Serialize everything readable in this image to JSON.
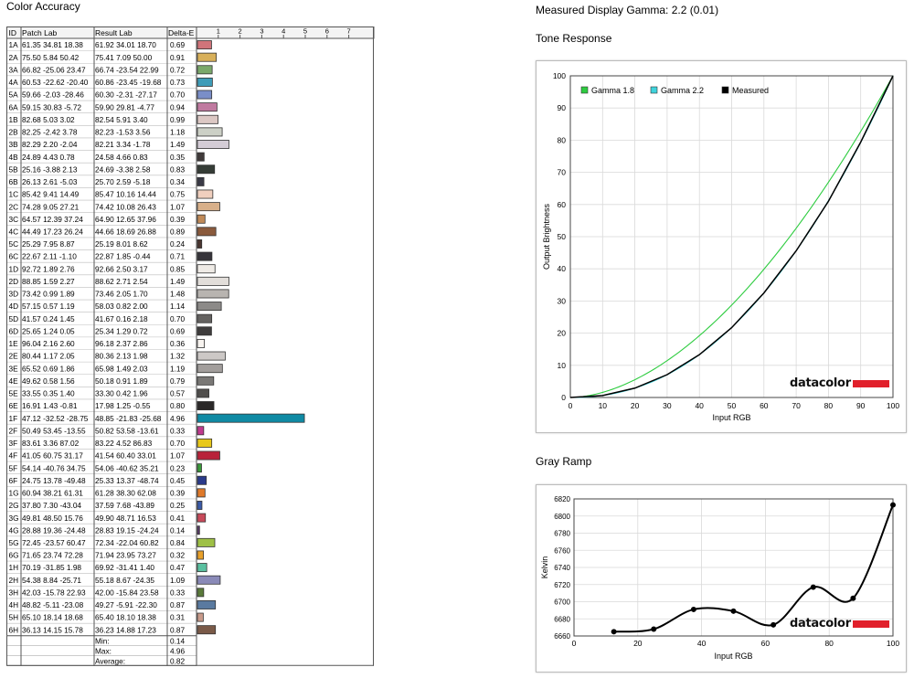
{
  "left": {
    "title": "Color Accuracy",
    "headers": {
      "id": "ID",
      "patch": "Patch Lab",
      "result": "Result Lab",
      "delta": "Delta-E"
    },
    "scale_ticks": [
      "1",
      "2",
      "3",
      "4",
      "5",
      "6",
      "7"
    ],
    "rows": [
      {
        "id": "1A",
        "patch": "61.35 34.81 18.38",
        "result": "61.92 34.01 18.70",
        "de": 0.69,
        "color": "#d0747a"
      },
      {
        "id": "2A",
        "patch": "75.50  5.84 50.42",
        "result": "75.41  7.09 50.00",
        "de": 0.91,
        "color": "#d8b05a"
      },
      {
        "id": "3A",
        "patch": "66.82 -25.06 23.47",
        "result": "66.74 -23.54 22.99",
        "de": 0.72,
        "color": "#7aa86a"
      },
      {
        "id": "4A",
        "patch": "60.53 -22.62 -20.40",
        "result": "60.86 -23.45 -19.68",
        "de": 0.73,
        "color": "#3e9cb8"
      },
      {
        "id": "5A",
        "patch": "59.66 -2.03 -28.46",
        "result": "60.30 -2.31 -27.17",
        "de": 0.7,
        "color": "#7a8ec8"
      },
      {
        "id": "6A",
        "patch": "59.15 30.83 -5.72",
        "result": "59.90 29.81 -4.77",
        "de": 0.94,
        "color": "#c07aa0"
      },
      {
        "id": "1B",
        "patch": "82.68  5.03  3.02",
        "result": "82.54  5.91  3.40",
        "de": 0.99,
        "color": "#dcc8c4"
      },
      {
        "id": "2B",
        "patch": "82.25 -2.42  3.78",
        "result": "82.23 -1.53  3.56",
        "de": 1.18,
        "color": "#ccd0c6"
      },
      {
        "id": "3B",
        "patch": "82.29  2.20 -2.04",
        "result": "82.21  3.34 -1.78",
        "de": 1.49,
        "color": "#d4ccd6"
      },
      {
        "id": "4B",
        "patch": "24.89  4.43  0.78",
        "result": "24.58  4.66  0.83",
        "de": 0.35,
        "color": "#403a3a"
      },
      {
        "id": "5B",
        "patch": "25.16 -3.88  2.13",
        "result": "24.69 -3.38  2.58",
        "de": 0.83,
        "color": "#353c36"
      },
      {
        "id": "6B",
        "patch": "26.13  2.61 -5.03",
        "result": "25.70  2.59 -5.18",
        "de": 0.34,
        "color": "#3a3a46"
      },
      {
        "id": "1C",
        "patch": "85.42  9.41 14.49",
        "result": "85.47 10.16 14.44",
        "de": 0.75,
        "color": "#f0cfbe"
      },
      {
        "id": "2C",
        "patch": "74.28  9.05 27.21",
        "result": "74.42 10.08 26.43",
        "de": 1.07,
        "color": "#d8b08a"
      },
      {
        "id": "3C",
        "patch": "64.57 12.39 37.24",
        "result": "64.90 12.65 37.96",
        "de": 0.39,
        "color": "#c08a58"
      },
      {
        "id": "4C",
        "patch": "44.49 17.23 26.24",
        "result": "44.66 18.69 26.88",
        "de": 0.89,
        "color": "#8a5a3c"
      },
      {
        "id": "5C",
        "patch": "25.29  7.95  8.87",
        "result": "25.19  8.01  8.62",
        "de": 0.24,
        "color": "#4a3630"
      },
      {
        "id": "6C",
        "patch": "22.67  2.11 -1.10",
        "result": "22.87  1.85 -0.44",
        "de": 0.71,
        "color": "#36343a"
      },
      {
        "id": "1D",
        "patch": "92.72  1.89  2.76",
        "result": "92.66  2.50  3.17",
        "de": 0.85,
        "color": "#efebe6"
      },
      {
        "id": "2D",
        "patch": "88.85  1.59  2.27",
        "result": "88.62  2.71  2.54",
        "de": 1.49,
        "color": "#e2deda"
      },
      {
        "id": "3D",
        "patch": "73.42  0.99  1.89",
        "result": "73.46  2.05  1.70",
        "de": 1.48,
        "color": "#b8b4b0"
      },
      {
        "id": "4D",
        "patch": "57.15  0.57  1.19",
        "result": "58.03  0.82  2.00",
        "de": 1.14,
        "color": "#8c8a88"
      },
      {
        "id": "5D",
        "patch": "41.57  0.24  1.45",
        "result": "41.67  0.16  2.18",
        "de": 0.7,
        "color": "#646260"
      },
      {
        "id": "6D",
        "patch": "25.65  1.24  0.05",
        "result": "25.34  1.29  0.72",
        "de": 0.69,
        "color": "#3e3c3c"
      },
      {
        "id": "1E",
        "patch": "96.04  2.16  2.60",
        "result": "96.18  2.37  2.86",
        "de": 0.36,
        "color": "#f8f4f0"
      },
      {
        "id": "2E",
        "patch": "80.44  1.17  2.05",
        "result": "80.36  2.13  1.98",
        "de": 1.32,
        "color": "#ccc8c6"
      },
      {
        "id": "3E",
        "patch": "65.52  0.69  1.86",
        "result": "65.98  1.49  2.03",
        "de": 1.19,
        "color": "#a29e9c"
      },
      {
        "id": "4E",
        "patch": "49.62  0.58  1.56",
        "result": "50.18  0.91  1.89",
        "de": 0.79,
        "color": "#7a7876"
      },
      {
        "id": "5E",
        "patch": "33.55  0.35  1.40",
        "result": "33.30  0.42  1.96",
        "de": 0.57,
        "color": "#504e4c"
      },
      {
        "id": "6E",
        "patch": "16.91  1.43 -0.81",
        "result": "17.98  1.25 -0.55",
        "de": 0.8,
        "color": "#2a2828"
      },
      {
        "id": "1F",
        "patch": "47.12 -32.52 -28.75",
        "result": "48.85 -21.83 -25.68",
        "de": 4.96,
        "color": "#0f8aa4"
      },
      {
        "id": "2F",
        "patch": "50.49 53.45 -13.55",
        "result": "50.82 53.58 -13.61",
        "de": 0.33,
        "color": "#c03a8e"
      },
      {
        "id": "3F",
        "patch": "83.61  3.36 87.02",
        "result": "83.22  4.52 86.83",
        "de": 0.7,
        "color": "#e8c81a"
      },
      {
        "id": "4F",
        "patch": "41.05 60.75 31.17",
        "result": "41.54 60.40 33.01",
        "de": 1.07,
        "color": "#b8223a"
      },
      {
        "id": "5F",
        "patch": "54.14 -40.76 34.75",
        "result": "54.06 -40.62 35.21",
        "de": 0.23,
        "color": "#3a9a3a"
      },
      {
        "id": "6F",
        "patch": "24.75 13.78 -49.48",
        "result": "25.33 13.37 -48.74",
        "de": 0.45,
        "color": "#2a3a8a"
      },
      {
        "id": "1G",
        "patch": "60.94 38.21 61.31",
        "result": "61.28 38.30 62.08",
        "de": 0.39,
        "color": "#e07a2a"
      },
      {
        "id": "2G",
        "patch": "37.80  7.30 -43.04",
        "result": "37.59  7.68 -43.89",
        "de": 0.25,
        "color": "#3a5aa8"
      },
      {
        "id": "3G",
        "patch": "49.81 48.50 15.76",
        "result": "49.90 48.71 16.53",
        "de": 0.41,
        "color": "#c84a5a"
      },
      {
        "id": "4G",
        "patch": "28.88 19.36 -24.48",
        "result": "28.83 19.15 -24.24",
        "de": 0.14,
        "color": "#5a3a6a"
      },
      {
        "id": "5G",
        "patch": "72.45 -23.57 60.47",
        "result": "72.34 -22.04 60.82",
        "de": 0.84,
        "color": "#9ec046"
      },
      {
        "id": "6G",
        "patch": "71.65 23.74 72.28",
        "result": "71.94 23.95 73.27",
        "de": 0.32,
        "color": "#e8a02a"
      },
      {
        "id": "1H",
        "patch": "70.19 -31.85  1.98",
        "result": "69.92 -31.41  1.40",
        "de": 0.47,
        "color": "#5ac0a0"
      },
      {
        "id": "2H",
        "patch": "54.38  8.84 -25.71",
        "result": "55.18  8.67 -24.35",
        "de": 1.09,
        "color": "#8a8ab8"
      },
      {
        "id": "3H",
        "patch": "42.03 -15.78 22.93",
        "result": "42.00 -15.84 23.58",
        "de": 0.33,
        "color": "#5a7a3a"
      },
      {
        "id": "4H",
        "patch": "48.82 -5.11 -23.08",
        "result": "49.27 -5.91 -22.30",
        "de": 0.87,
        "color": "#5a7aa0"
      },
      {
        "id": "5H",
        "patch": "65.10 18.14 18.68",
        "result": "65.40 18.10 18.38",
        "de": 0.31,
        "color": "#c89a8a"
      },
      {
        "id": "6H",
        "patch": "36.13 14.15 15.78",
        "result": "36.23 14.88 17.23",
        "de": 0.87,
        "color": "#7a5a48"
      }
    ],
    "summary": [
      {
        "label": "Min:",
        "value": "0.14"
      },
      {
        "label": "Max:",
        "value": "4.96"
      },
      {
        "label": "Average:",
        "value": "0.82"
      }
    ]
  },
  "gamma_heading": "Measured Display Gamma: 2.2 (0.01)",
  "tone": {
    "title": "Tone Response",
    "legend": [
      {
        "name": "Gamma 1.8",
        "color": "#2ecc40"
      },
      {
        "name": "Gamma 2.2",
        "color": "#3fd3dc"
      },
      {
        "name": "Measured",
        "color": "#000000"
      }
    ],
    "watermark": "datacolor"
  },
  "gray": {
    "title": "Gray Ramp",
    "watermark": "datacolor"
  },
  "chart_data": [
    {
      "type": "line",
      "title": "Tone Response",
      "xlabel": "Input RGB",
      "ylabel": "Output Brightness",
      "xlim": [
        0,
        100
      ],
      "ylim": [
        0,
        100
      ],
      "xticks": [
        0,
        10,
        20,
        30,
        40,
        50,
        60,
        70,
        80,
        90,
        100
      ],
      "yticks": [
        0,
        10,
        20,
        30,
        40,
        50,
        60,
        70,
        80,
        90,
        100
      ],
      "grid": true,
      "legend_position": "top-left",
      "series": [
        {
          "name": "Gamma 1.8",
          "gamma": 1.8,
          "color": "#2ecc40"
        },
        {
          "name": "Gamma 2.2",
          "gamma": 2.2,
          "color": "#3fd3dc"
        },
        {
          "name": "Measured",
          "x": [
            0,
            10,
            20,
            30,
            40,
            50,
            60,
            70,
            80,
            90,
            100
          ],
          "y": [
            0,
            0.6,
            2.9,
            7.1,
            13.3,
            21.7,
            32.5,
            45.6,
            61.0,
            79.4,
            100
          ],
          "color": "#000000"
        }
      ]
    },
    {
      "type": "line",
      "title": "Gray Ramp",
      "xlabel": "Input RGB",
      "ylabel": "Kelvin",
      "xlim": [
        0,
        100
      ],
      "ylim": [
        6660,
        6820
      ],
      "xticks": [
        0,
        20,
        40,
        60,
        80,
        100
      ],
      "yticks": [
        6660,
        6680,
        6700,
        6720,
        6740,
        6760,
        6780,
        6800,
        6820
      ],
      "grid": true,
      "series": [
        {
          "name": "",
          "x": [
            12.5,
            25,
            37.5,
            50,
            62.5,
            75,
            87.5,
            100
          ],
          "y": [
            6665,
            6668,
            6691,
            6689,
            6673,
            6717,
            6704,
            6813
          ],
          "color": "#000000"
        }
      ]
    }
  ]
}
